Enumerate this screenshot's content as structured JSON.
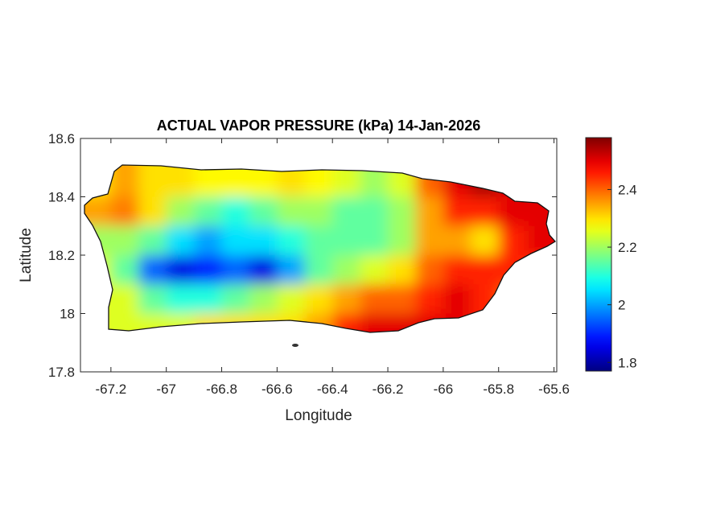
{
  "chart_data": {
    "type": "heatmap",
    "title": "ACTUAL VAPOR PRESSURE (kPa) 14-Jan-2026",
    "xlabel": "Longitude",
    "ylabel": "Latitude",
    "xlim": [
      -67.31,
      -65.59
    ],
    "ylim": [
      17.8,
      18.6
    ],
    "xticks": [
      -67.2,
      -67,
      -66.8,
      -66.6,
      -66.4,
      -66.2,
      -66,
      -65.8,
      -65.6
    ],
    "xtick_labels": [
      "-67.2",
      "-67",
      "-66.8",
      "-66.6",
      "-66.4",
      "-66.2",
      "-66",
      "-65.8",
      "-65.6"
    ],
    "yticks": [
      17.8,
      18,
      18.2,
      18.4,
      18.6
    ],
    "ytick_labels": [
      "17.8",
      "18",
      "18.2",
      "18.4",
      "18.6"
    ],
    "colorbar": {
      "colormap": "jet",
      "clim": [
        1.77,
        2.58
      ],
      "ticks": [
        1.8,
        2,
        2.2,
        2.4
      ],
      "tick_labels": [
        "1.8",
        "2",
        "2.2",
        "2.4"
      ]
    },
    "grid_lon": [
      -67.25,
      -67.15,
      -67.05,
      -66.95,
      -66.85,
      -66.75,
      -66.65,
      -66.55,
      -66.45,
      -66.35,
      -66.25,
      -66.15,
      -66.05,
      -65.95,
      -65.85,
      -65.75,
      -65.65
    ],
    "grid_lat": [
      18.45,
      18.35,
      18.25,
      18.15,
      18.05,
      17.95
    ],
    "values": [
      [
        2.3,
        2.35,
        2.3,
        2.3,
        2.28,
        2.28,
        2.28,
        2.3,
        2.28,
        2.25,
        2.2,
        2.25,
        2.4,
        2.5,
        2.55,
        2.5,
        2.5
      ],
      [
        2.35,
        2.38,
        2.3,
        2.2,
        2.15,
        2.1,
        2.15,
        2.2,
        2.2,
        2.15,
        2.15,
        2.2,
        2.35,
        2.45,
        2.45,
        2.5,
        2.5
      ],
      [
        2.2,
        2.2,
        2.15,
        2.05,
        2.0,
        2.05,
        2.05,
        2.1,
        2.15,
        2.15,
        2.15,
        2.2,
        2.35,
        2.35,
        2.3,
        2.45,
        2.5
      ],
      [
        2.25,
        2.15,
        1.95,
        1.85,
        1.9,
        1.95,
        1.85,
        2.0,
        2.15,
        2.2,
        2.25,
        2.3,
        2.4,
        2.45,
        2.45,
        2.45,
        2.45
      ],
      [
        2.25,
        2.25,
        2.15,
        2.1,
        2.1,
        2.15,
        2.2,
        2.25,
        2.3,
        2.35,
        2.4,
        2.4,
        2.45,
        2.5,
        2.45,
        2.4,
        2.4
      ],
      [
        2.25,
        2.25,
        2.25,
        2.25,
        2.3,
        2.3,
        2.3,
        2.3,
        2.35,
        2.45,
        2.5,
        2.5,
        2.5,
        2.5,
        2.45,
        2.4,
        2.4
      ]
    ]
  }
}
